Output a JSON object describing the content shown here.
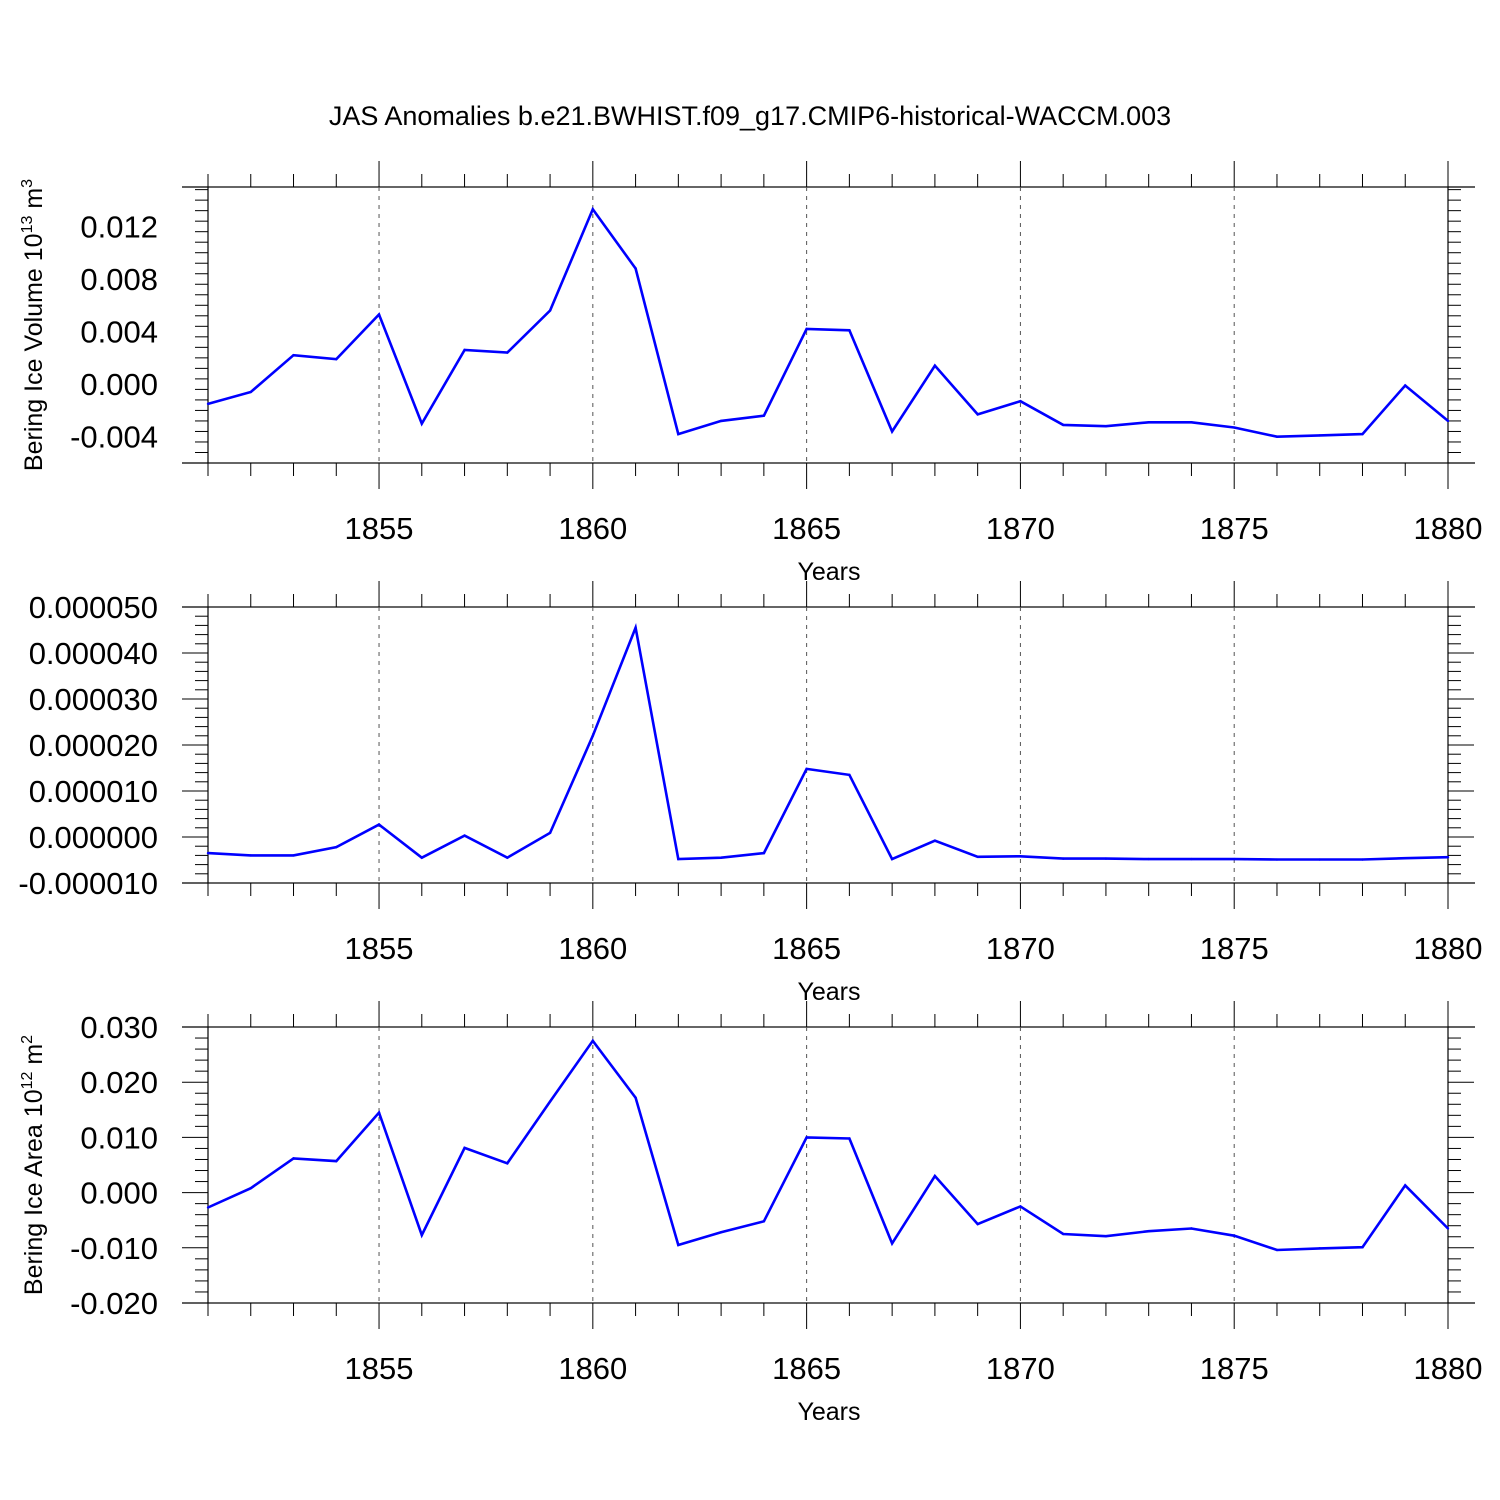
{
  "title": "JAS Anomalies b.e21.BWHIST.f09_g17.CMIP6-historical-WACCM.003",
  "line_color": "#0000ff",
  "chart_data": [
    {
      "type": "line",
      "ylabel": "Bering Ice Volume 10",
      "ylabel_sup": "13",
      "ylabel_unit": " m",
      "ylabel_unit_sup": "3",
      "xlabel": "Years",
      "xlim": [
        1851,
        1880
      ],
      "ylim": [
        -0.006,
        0.015
      ],
      "yticks": [
        -0.004,
        0.0,
        0.004,
        0.008,
        0.012
      ],
      "ytick_labels": [
        "-0.004",
        "0.000",
        "0.004",
        "0.008",
        "0.012"
      ],
      "xticks": [
        1855,
        1860,
        1865,
        1870,
        1875,
        1880
      ],
      "xtick_labels": [
        "1855",
        "1860",
        "1865",
        "1870",
        "1875",
        "1880"
      ],
      "x": [
        1851,
        1852,
        1853,
        1854,
        1855,
        1856,
        1857,
        1858,
        1859,
        1860,
        1861,
        1862,
        1863,
        1864,
        1865,
        1866,
        1867,
        1868,
        1869,
        1870,
        1871,
        1872,
        1873,
        1874,
        1875,
        1876,
        1877,
        1878,
        1879,
        1880
      ],
      "values": [
        -0.0015,
        -0.0006,
        0.0022,
        0.0019,
        0.0053,
        -0.003,
        0.0026,
        0.0024,
        0.0056,
        0.0133,
        0.0088,
        -0.0038,
        -0.0028,
        -0.0024,
        0.0042,
        0.0041,
        -0.0036,
        0.0014,
        -0.0023,
        -0.0013,
        -0.0031,
        -0.0032,
        -0.0029,
        -0.0029,
        -0.0033,
        -0.004,
        -0.0039,
        -0.0038,
        -0.0001,
        -0.0028
      ]
    },
    {
      "type": "line",
      "ylabel": "",
      "xlabel": "Years",
      "xlim": [
        1851,
        1880
      ],
      "ylim": [
        -1e-05,
        5e-05
      ],
      "yticks": [
        -1e-05,
        0.0,
        1e-05,
        2e-05,
        3e-05,
        4e-05,
        5e-05
      ],
      "ytick_labels": [
        "-0.000010",
        "0.000000",
        "0.000010",
        "0.000020",
        "0.000030",
        "0.000040",
        "0.000050"
      ],
      "xticks": [
        1855,
        1860,
        1865,
        1870,
        1875,
        1880
      ],
      "xtick_labels": [
        "1855",
        "1860",
        "1865",
        "1870",
        "1875",
        "1880"
      ],
      "x": [
        1851,
        1852,
        1853,
        1854,
        1855,
        1856,
        1857,
        1858,
        1859,
        1860,
        1861,
        1862,
        1863,
        1864,
        1865,
        1866,
        1867,
        1868,
        1869,
        1870,
        1871,
        1872,
        1873,
        1874,
        1875,
        1876,
        1877,
        1878,
        1879,
        1880
      ],
      "values": [
        -3.5e-06,
        -4e-06,
        -4e-06,
        -2.2e-06,
        2.7e-06,
        -4.5e-06,
        3e-07,
        -4.5e-06,
        9e-07,
        2.2e-05,
        4.55e-05,
        -4.8e-06,
        -4.5e-06,
        -3.5e-06,
        1.48e-05,
        1.35e-05,
        -4.8e-06,
        -8e-07,
        -4.3e-06,
        -4.2e-06,
        -4.7e-06,
        -4.7e-06,
        -4.8e-06,
        -4.8e-06,
        -4.8e-06,
        -4.9e-06,
        -4.9e-06,
        -4.9e-06,
        -4.6e-06,
        -4.4e-06
      ]
    },
    {
      "type": "line",
      "ylabel": "Bering Ice Area 10",
      "ylabel_sup": "12",
      "ylabel_unit": " m",
      "ylabel_unit_sup": "2",
      "xlabel": "Years",
      "xlim": [
        1851,
        1880
      ],
      "ylim": [
        -0.02,
        0.03
      ],
      "yticks": [
        -0.02,
        -0.01,
        0.0,
        0.01,
        0.02,
        0.03
      ],
      "ytick_labels": [
        "-0.020",
        "-0.010",
        "0.000",
        "0.010",
        "0.020",
        "0.030"
      ],
      "xticks": [
        1855,
        1860,
        1865,
        1870,
        1875,
        1880
      ],
      "xtick_labels": [
        "1855",
        "1860",
        "1865",
        "1870",
        "1875",
        "1880"
      ],
      "x": [
        1851,
        1852,
        1853,
        1854,
        1855,
        1856,
        1857,
        1858,
        1859,
        1860,
        1861,
        1862,
        1863,
        1864,
        1865,
        1866,
        1867,
        1868,
        1869,
        1870,
        1871,
        1872,
        1873,
        1874,
        1875,
        1876,
        1877,
        1878,
        1879,
        1880
      ],
      "values": [
        -0.0027,
        0.0008,
        0.0062,
        0.0057,
        0.0145,
        -0.0077,
        0.0081,
        0.0053,
        0.0165,
        0.0275,
        0.0172,
        -0.0095,
        -0.0072,
        -0.0052,
        0.01,
        0.0098,
        -0.0092,
        0.003,
        -0.0057,
        -0.0025,
        -0.0075,
        -0.0079,
        -0.007,
        -0.0065,
        -0.0078,
        -0.0104,
        -0.0101,
        -0.0099,
        0.0013,
        -0.0065
      ]
    }
  ]
}
